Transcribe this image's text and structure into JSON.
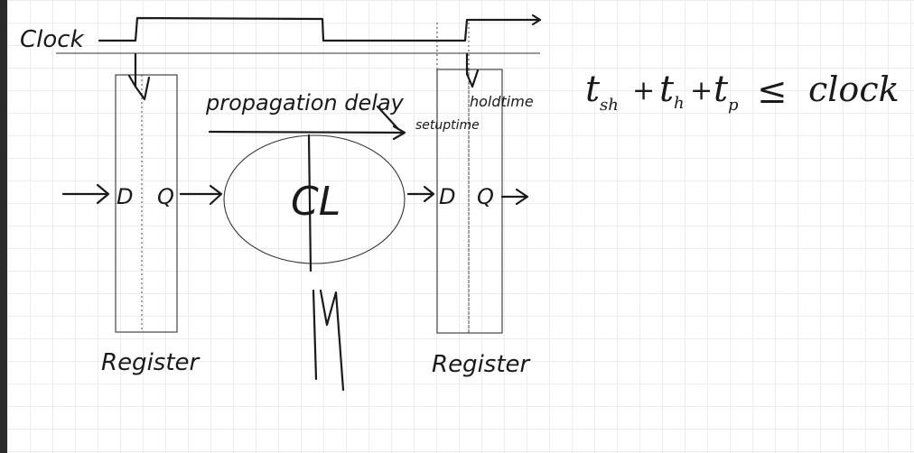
{
  "clock_label": "Clock",
  "register_left": {
    "d_label": "D",
    "q_label": "Q",
    "caption": "Register"
  },
  "register_right": {
    "d_label": "D",
    "q_label": "Q",
    "caption": "Register"
  },
  "propagation_label": "propagation delay",
  "setup_label": "setuptime",
  "hold_label": "holdtime",
  "logic_label": "CL",
  "formula": {
    "t1": "t",
    "t1_sub": "sh",
    "plus1": "+",
    "t2": "t",
    "t2_sub": "h",
    "plus2": "+",
    "t3": "t",
    "t3_sub": "p",
    "leq": "≤",
    "rhs": "clock"
  }
}
